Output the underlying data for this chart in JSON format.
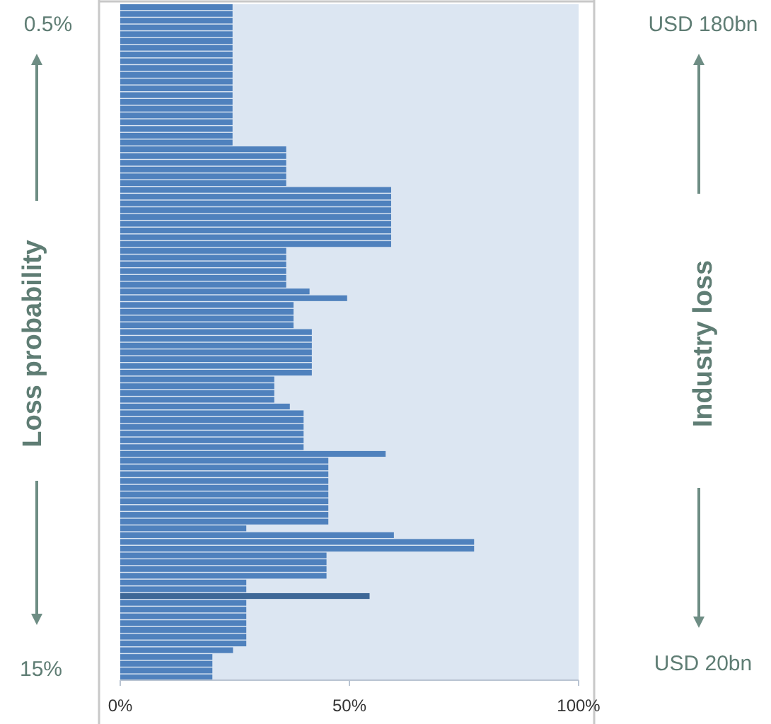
{
  "chart_data": {
    "type": "bar",
    "orientation": "horizontal",
    "ylabel": "Loss probability",
    "y2label": "Industry loss",
    "annotations": [
      "0.5%",
      "15%",
      "USD 180bn",
      "USD 20bn"
    ],
    "categories": [
      null,
      null,
      null,
      null,
      null,
      null,
      null,
      null,
      null,
      null,
      null,
      null,
      null,
      null,
      null,
      null,
      null,
      null,
      null,
      null,
      null,
      null,
      null,
      null,
      null,
      null,
      null,
      null,
      null,
      null,
      null,
      null,
      null,
      null,
      null,
      null,
      null,
      null,
      null,
      null,
      null,
      null,
      null,
      null,
      null,
      null,
      null,
      null,
      null,
      null,
      null,
      null,
      null,
      null,
      null,
      null,
      null,
      null,
      null,
      null,
      null,
      null,
      null,
      null,
      null,
      null,
      null,
      null,
      null,
      null,
      null,
      null,
      null,
      null,
      null,
      null,
      null,
      null,
      null,
      null,
      null,
      null,
      null,
      null,
      null,
      null,
      null,
      null,
      null,
      null,
      null,
      null,
      null,
      null,
      null,
      null,
      null,
      null,
      null,
      null
    ],
    "values": [
      24.5,
      24.5,
      24.5,
      24.5,
      24.5,
      24.5,
      24.5,
      24.5,
      24.5,
      24.5,
      24.5,
      24.5,
      24.5,
      24.5,
      24.5,
      24.5,
      24.5,
      24.5,
      24.5,
      24.5,
      24.5,
      36.2,
      36.2,
      36.2,
      36.2,
      36.2,
      36.2,
      59.1,
      59.1,
      59.1,
      59.1,
      59.1,
      59.1,
      59.1,
      59.1,
      59.1,
      36.2,
      36.2,
      36.2,
      36.2,
      36.2,
      36.2,
      41.3,
      49.5,
      37.8,
      37.8,
      37.8,
      37.8,
      41.8,
      41.8,
      41.8,
      41.8,
      41.8,
      41.8,
      41.8,
      33.6,
      33.6,
      33.6,
      33.6,
      37,
      40,
      40,
      40,
      40,
      40,
      40,
      57.9,
      45.4,
      45.4,
      45.4,
      45.4,
      45.4,
      45.4,
      45.4,
      45.4,
      45.4,
      45.4,
      27.5,
      59.7,
      77.2,
      77.2,
      45,
      45,
      45,
      45,
      27.5,
      27.5,
      54.4,
      27.5,
      27.5,
      27.5,
      27.5,
      27.5,
      27.5,
      27.5,
      24.6,
      20.1,
      20.1,
      20.1,
      20.1
    ],
    "colors": [
      "#4f81bd",
      "#4f81bd",
      "#4f81bd",
      "#4f81bd",
      "#4f81bd",
      "#4f81bd",
      "#4f81bd",
      "#4f81bd",
      "#4f81bd",
      "#4f81bd",
      "#4f81bd",
      "#4f81bd",
      "#4f81bd",
      "#4f81bd",
      "#4f81bd",
      "#4f81bd",
      "#4f81bd",
      "#4f81bd",
      "#4f81bd",
      "#4f81bd",
      "#4f81bd",
      "#4f81bd",
      "#4f81bd",
      "#4f81bd",
      "#4f81bd",
      "#4f81bd",
      "#4f81bd",
      "#4f81bd",
      "#4f81bd",
      "#4f81bd",
      "#4f81bd",
      "#4f81bd",
      "#4f81bd",
      "#4f81bd",
      "#4f81bd",
      "#4f81bd",
      "#4f81bd",
      "#4f81bd",
      "#4f81bd",
      "#4f81bd",
      "#4f81bd",
      "#4f81bd",
      "#4f81bd",
      "#4f81bd",
      "#4f81bd",
      "#4f81bd",
      "#4f81bd",
      "#4f81bd",
      "#4f81bd",
      "#4f81bd",
      "#4f81bd",
      "#4f81bd",
      "#4f81bd",
      "#4f81bd",
      "#4f81bd",
      "#4f81bd",
      "#4f81bd",
      "#4f81bd",
      "#4f81bd",
      "#4f81bd",
      "#4f81bd",
      "#4f81bd",
      "#4f81bd",
      "#4f81bd",
      "#4f81bd",
      "#4f81bd",
      "#4f81bd",
      "#4f81bd",
      "#4f81bd",
      "#4f81bd",
      "#4f81bd",
      "#4f81bd",
      "#4f81bd",
      "#4f81bd",
      "#4f81bd",
      "#4f81bd",
      "#4f81bd",
      "#4f81bd",
      "#4f81bd",
      "#4f81bd",
      "#4f81bd",
      "#4f81bd",
      "#4f81bd",
      "#4f81bd",
      "#4f81bd",
      "#4f81bd",
      "#4f81bd",
      "#3d6797",
      "#4f81bd",
      "#4f81bd",
      "#4f81bd",
      "#4f81bd",
      "#4f81bd",
      "#4f81bd",
      "#4f81bd",
      "#4f81bd",
      "#4f81bd",
      "#4f81bd",
      "#4f81bd",
      "#4f81bd"
    ],
    "xlim": [
      0,
      100
    ],
    "xticks": [
      {
        "value": 0,
        "label": "0%"
      },
      {
        "value": 50,
        "label": "50%"
      },
      {
        "value": 100,
        "label": "100%"
      }
    ]
  }
}
